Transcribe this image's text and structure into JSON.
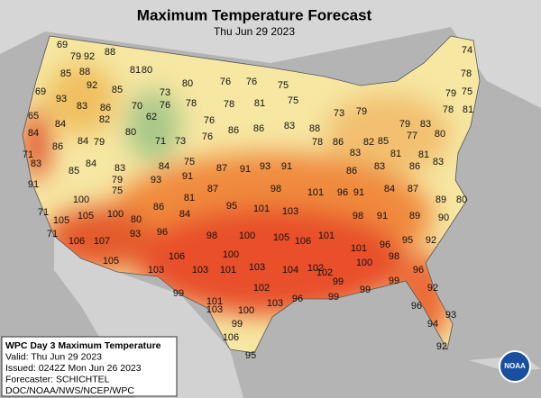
{
  "header": {
    "title": "Maximum Temperature Forecast",
    "subtitle": "Thu Jun 29 2023"
  },
  "temperatures": [
    69,
    79,
    92,
    88,
    81,
    80,
    85,
    88,
    92,
    85,
    73,
    80,
    76,
    76,
    75,
    74,
    78,
    69,
    93,
    83,
    86,
    70,
    76,
    78,
    78,
    81,
    75,
    73,
    79,
    79,
    75,
    78,
    81,
    65,
    84,
    82,
    62,
    80,
    76,
    86,
    86,
    83,
    88,
    79,
    83,
    77,
    80,
    84,
    86,
    84,
    79,
    71,
    73,
    76,
    78,
    86,
    82,
    83,
    85,
    81,
    81,
    83,
    71,
    83,
    84,
    85,
    83,
    84,
    75,
    87,
    91,
    93,
    91,
    86,
    83,
    86,
    79,
    93,
    91,
    87,
    98,
    101,
    96,
    91,
    84,
    87,
    91,
    75,
    100,
    81,
    95,
    101,
    103,
    80,
    89,
    71,
    105,
    105,
    100,
    80,
    86,
    84,
    98,
    91,
    89,
    90,
    71,
    93,
    96,
    98,
    100,
    105,
    106,
    101,
    96,
    95,
    92,
    106,
    107,
    105,
    106,
    100,
    102,
    101,
    100,
    98,
    96,
    103,
    103,
    101,
    103,
    104,
    102,
    99,
    99,
    102,
    101,
    100,
    96,
    99,
    99,
    99,
    92,
    103,
    99,
    103,
    96,
    94,
    93,
    92,
    106,
    95
  ],
  "info_box": {
    "lines": [
      "WPC Day 3 Maximum Temperature",
      "Valid: Thu Jun 29 2023",
      "Issued: 0242Z Mon Jun 26 2023",
      "Forecaster: SCHICHTEL",
      "DOC/NOAA/NWS/NCEP/WPC"
    ]
  },
  "logo": "NOAA"
}
